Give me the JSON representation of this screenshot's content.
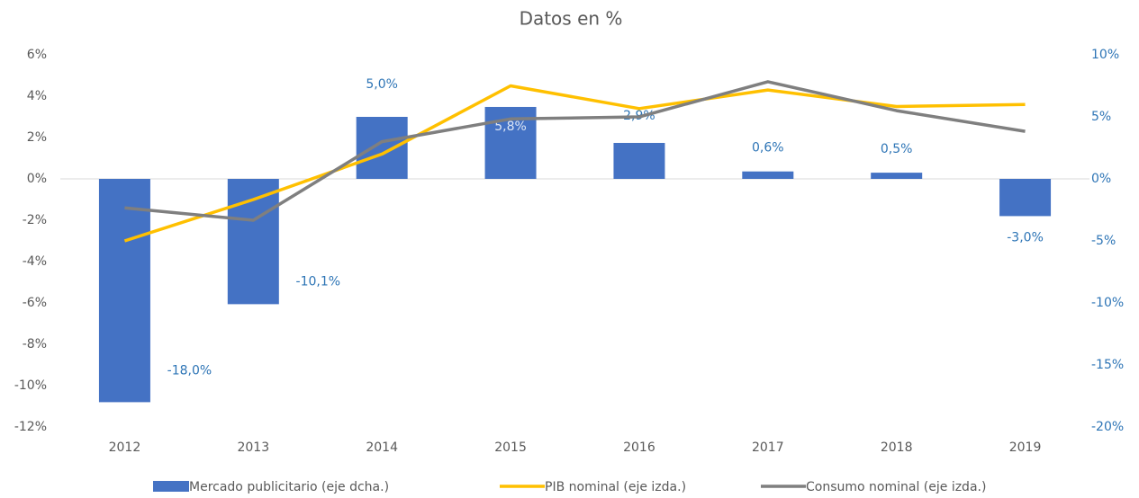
{
  "chart_data": {
    "type": "combo",
    "title": "Datos en %",
    "categories": [
      "2012",
      "2013",
      "2014",
      "2015",
      "2016",
      "2017",
      "2018",
      "2019"
    ],
    "series": [
      {
        "name": "Mercado publicitario (eje dcha.)",
        "type": "bar",
        "axis": "y2",
        "color": "#4472c4",
        "values": [
          -18.0,
          -10.1,
          5.0,
          5.8,
          2.9,
          0.6,
          0.5,
          -3.0
        ],
        "value_labels": [
          "-18,0%",
          "-10,1%",
          "5,0%",
          "5,8%",
          "2,9%",
          "0,6%",
          "0,5%",
          "-3,0%"
        ]
      },
      {
        "name": "PIB nominal (eje izda.)",
        "type": "line",
        "color": "#ffc000",
        "values": [
          -3.0,
          -1.0,
          1.2,
          4.5,
          3.4,
          4.3,
          3.5,
          3.6
        ]
      },
      {
        "name": "Consumo nominal (eje izda.)",
        "type": "line",
        "color": "#7f7f7f",
        "values": [
          -1.4,
          -2.0,
          1.8,
          2.9,
          3.0,
          4.7,
          3.3,
          2.3
        ]
      }
    ],
    "ylim": [
      -12,
      6
    ],
    "yticks": [
      {
        "value": -12,
        "label": "-12%"
      },
      {
        "value": -10,
        "label": "-10%"
      },
      {
        "value": -8,
        "label": "-8%"
      },
      {
        "value": -6,
        "label": "-6%"
      },
      {
        "value": -4,
        "label": "-4%"
      },
      {
        "value": -2,
        "label": "-2%"
      },
      {
        "value": 0,
        "label": "0%"
      },
      {
        "value": 2,
        "label": "2%"
      },
      {
        "value": 4,
        "label": "4%"
      },
      {
        "value": 6,
        "label": "6%"
      }
    ],
    "y2lim": [
      -20,
      10
    ],
    "y2ticks": [
      {
        "value": -20,
        "label": "-20%"
      },
      {
        "value": -15,
        "label": "-15%"
      },
      {
        "value": -10,
        "label": "-10%"
      },
      {
        "value": -5,
        "label": "-5%"
      },
      {
        "value": 0,
        "label": "0%"
      },
      {
        "value": 5,
        "label": "5%"
      },
      {
        "value": 10,
        "label": "10%"
      }
    ],
    "grid": false,
    "legend": "bottom"
  }
}
